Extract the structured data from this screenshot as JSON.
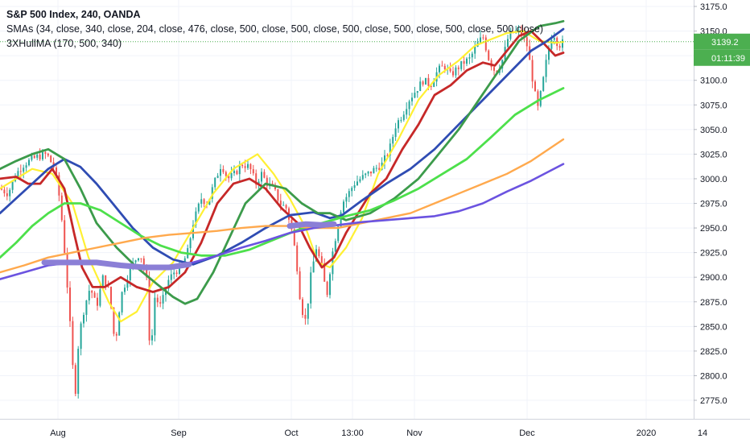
{
  "header": {
    "symbol_line": "S&P 500 Index, 240, OANDA",
    "sma_line": "SMAs (34, close, 340, close, 204, close, 476, close, 500, close, 500, close, 500, close, 500, close, 500, close, 500 close)",
    "hull_line": "3XHullMA (170, 500, 340)"
  },
  "price_badge": {
    "price": "3139.2",
    "countdown": "01:11:39",
    "color": "#4caf50"
  },
  "chart_data": {
    "type": "candlestick",
    "title": "S&P 500 Index, 240, OANDA",
    "ylim": [
      2760,
      3180
    ],
    "y_ticks": [
      2775,
      2800,
      2825,
      2850,
      2875,
      2900,
      2925,
      2950,
      2975,
      3000,
      3025,
      3050,
      3075,
      3100,
      3125,
      3150,
      3175
    ],
    "y_tick_labels": [
      "2775.0",
      "2800.0",
      "2825.0",
      "2850.0",
      "2875.0",
      "2900.0",
      "2925.0",
      "2950.0",
      "2975.0",
      "3000.0",
      "3025.0",
      "3050.0",
      "3075.0",
      "3100.0",
      "3125.0",
      "3150.0",
      "3175.0"
    ],
    "x_ticks": [
      {
        "label": "Aug",
        "t": 72
      },
      {
        "label": "Sep",
        "t": 222
      },
      {
        "label": "Oct",
        "t": 362
      },
      {
        "label": "13:00",
        "t": 438
      },
      {
        "label": "Nov",
        "t": 515
      },
      {
        "label": "Dec",
        "t": 655
      },
      {
        "label": "2020",
        "t": 803
      },
      {
        "label": "14",
        "t": 873
      }
    ],
    "x_range": [
      0,
      862
    ],
    "last_price": 3139.2,
    "price_path": [
      [
        0,
        2990
      ],
      [
        10,
        2985
      ],
      [
        20,
        3005
      ],
      [
        30,
        3015
      ],
      [
        45,
        3022
      ],
      [
        58,
        3025
      ],
      [
        68,
        3010
      ],
      [
        75,
        2975
      ],
      [
        82,
        2910
      ],
      [
        88,
        2840
      ],
      [
        93,
        2775
      ],
      [
        98,
        2840
      ],
      [
        105,
        2870
      ],
      [
        112,
        2890
      ],
      [
        120,
        2870
      ],
      [
        128,
        2900
      ],
      [
        136,
        2885
      ],
      [
        143,
        2830
      ],
      [
        150,
        2880
      ],
      [
        158,
        2900
      ],
      [
        166,
        2915
      ],
      [
        174,
        2925
      ],
      [
        182,
        2900
      ],
      [
        187,
        2815
      ],
      [
        192,
        2880
      ],
      [
        200,
        2870
      ],
      [
        208,
        2895
      ],
      [
        216,
        2905
      ],
      [
        225,
        2910
      ],
      [
        233,
        2925
      ],
      [
        240,
        2955
      ],
      [
        250,
        2980
      ],
      [
        258,
        2975
      ],
      [
        266,
        2995
      ],
      [
        275,
        3015
      ],
      [
        283,
        3000
      ],
      [
        292,
        3005
      ],
      [
        300,
        3015
      ],
      [
        310,
        3012
      ],
      [
        318,
        2995
      ],
      [
        325,
        3005
      ],
      [
        332,
        2995
      ],
      [
        340,
        2990
      ],
      [
        348,
        2975
      ],
      [
        356,
        2970
      ],
      [
        362,
        2950
      ],
      [
        368,
        2920
      ],
      [
        374,
        2870
      ],
      [
        380,
        2855
      ],
      [
        386,
        2900
      ],
      [
        393,
        2930
      ],
      [
        400,
        2910
      ],
      [
        406,
        2880
      ],
      [
        412,
        2920
      ],
      [
        418,
        2945
      ],
      [
        425,
        2975
      ],
      [
        433,
        2985
      ],
      [
        440,
        2995
      ],
      [
        448,
        3000
      ],
      [
        457,
        3005
      ],
      [
        466,
        3010
      ],
      [
        475,
        3015
      ],
      [
        484,
        3030
      ],
      [
        492,
        3055
      ],
      [
        500,
        3065
      ],
      [
        508,
        3080
      ],
      [
        517,
        3090
      ],
      [
        526,
        3100
      ],
      [
        535,
        3095
      ],
      [
        544,
        3110
      ],
      [
        552,
        3115
      ],
      [
        560,
        3105
      ],
      [
        568,
        3112
      ],
      [
        576,
        3118
      ],
      [
        584,
        3122
      ],
      [
        592,
        3135
      ],
      [
        600,
        3145
      ],
      [
        608,
        3120
      ],
      [
        616,
        3108
      ],
      [
        624,
        3120
      ],
      [
        632,
        3145
      ],
      [
        640,
        3150
      ],
      [
        648,
        3148
      ],
      [
        655,
        3135
      ],
      [
        662,
        3100
      ],
      [
        668,
        3070
      ],
      [
        674,
        3095
      ],
      [
        680,
        3125
      ],
      [
        687,
        3150
      ],
      [
        694,
        3135
      ],
      [
        700,
        3139
      ]
    ],
    "series": [
      {
        "color": "#fff033",
        "width": 2.2,
        "points": [
          [
            0,
            2990
          ],
          [
            40,
            3010
          ],
          [
            65,
            3005
          ],
          [
            90,
            2975
          ],
          [
            110,
            2920
          ],
          [
            135,
            2875
          ],
          [
            150,
            2855
          ],
          [
            170,
            2865
          ],
          [
            190,
            2895
          ],
          [
            215,
            2915
          ],
          [
            240,
            2950
          ],
          [
            265,
            2985
          ],
          [
            290,
            3010
          ],
          [
            320,
            3025
          ],
          [
            340,
            3005
          ],
          [
            360,
            2980
          ],
          [
            380,
            2950
          ],
          [
            395,
            2915
          ],
          [
            410,
            2910
          ],
          [
            430,
            2930
          ],
          [
            450,
            2960
          ],
          [
            470,
            3005
          ],
          [
            495,
            3040
          ],
          [
            520,
            3080
          ],
          [
            545,
            3105
          ],
          [
            570,
            3120
          ],
          [
            590,
            3135
          ],
          [
            605,
            3140
          ],
          [
            630,
            3148
          ],
          [
            650,
            3150
          ],
          [
            670,
            3140
          ],
          [
            690,
            3138
          ],
          [
            700,
            3139
          ]
        ]
      },
      {
        "color": "#c62828",
        "width": 2.8,
        "points": [
          [
            0,
            3000
          ],
          [
            20,
            3002
          ],
          [
            35,
            2995
          ],
          [
            50,
            2995
          ],
          [
            65,
            3010
          ],
          [
            80,
            2990
          ],
          [
            92,
            2945
          ],
          [
            102,
            2910
          ],
          [
            115,
            2890
          ],
          [
            130,
            2890
          ],
          [
            150,
            2900
          ],
          [
            170,
            2890
          ],
          [
            190,
            2885
          ],
          [
            210,
            2890
          ],
          [
            230,
            2905
          ],
          [
            250,
            2935
          ],
          [
            270,
            2975
          ],
          [
            290,
            2995
          ],
          [
            310,
            3000
          ],
          [
            330,
            2990
          ],
          [
            350,
            2970
          ],
          [
            370,
            2955
          ],
          [
            385,
            2930
          ],
          [
            400,
            2910
          ],
          [
            415,
            2920
          ],
          [
            430,
            2945
          ],
          [
            445,
            2965
          ],
          [
            460,
            2985
          ],
          [
            480,
            3000
          ],
          [
            500,
            3030
          ],
          [
            520,
            3055
          ],
          [
            540,
            3085
          ],
          [
            560,
            3095
          ],
          [
            580,
            3110
          ],
          [
            600,
            3118
          ],
          [
            615,
            3115
          ],
          [
            630,
            3130
          ],
          [
            645,
            3145
          ],
          [
            660,
            3150
          ],
          [
            675,
            3138
          ],
          [
            690,
            3125
          ],
          [
            700,
            3128
          ]
        ]
      },
      {
        "color": "#2f4cb3",
        "width": 2.8,
        "points": [
          [
            0,
            2965
          ],
          [
            20,
            2980
          ],
          [
            40,
            2995
          ],
          [
            60,
            3010
          ],
          [
            80,
            3020
          ],
          [
            100,
            3012
          ],
          [
            120,
            2995
          ],
          [
            140,
            2975
          ],
          [
            165,
            2950
          ],
          [
            190,
            2930
          ],
          [
            215,
            2918
          ],
          [
            240,
            2913
          ],
          [
            270,
            2922
          ],
          [
            300,
            2935
          ],
          [
            330,
            2950
          ],
          [
            360,
            2963
          ],
          [
            390,
            2966
          ],
          [
            410,
            2960
          ],
          [
            425,
            2963
          ],
          [
            450,
            2978
          ],
          [
            480,
            2995
          ],
          [
            510,
            3010
          ],
          [
            540,
            3030
          ],
          [
            570,
            3055
          ],
          [
            600,
            3080
          ],
          [
            630,
            3105
          ],
          [
            660,
            3130
          ],
          [
            680,
            3140
          ],
          [
            700,
            3152
          ]
        ]
      },
      {
        "color": "#3c9b4b",
        "width": 2.8,
        "points": [
          [
            0,
            3010
          ],
          [
            20,
            3018
          ],
          [
            40,
            3025
          ],
          [
            60,
            3030
          ],
          [
            80,
            3020
          ],
          [
            100,
            2990
          ],
          [
            120,
            2955
          ],
          [
            145,
            2930
          ],
          [
            170,
            2910
          ],
          [
            195,
            2893
          ],
          [
            215,
            2880
          ],
          [
            230,
            2873
          ],
          [
            245,
            2878
          ],
          [
            265,
            2905
          ],
          [
            285,
            2940
          ],
          [
            305,
            2975
          ],
          [
            330,
            2995
          ],
          [
            355,
            2990
          ],
          [
            375,
            2975
          ],
          [
            395,
            2965
          ],
          [
            410,
            2965
          ],
          [
            430,
            2958
          ],
          [
            460,
            2965
          ],
          [
            490,
            2980
          ],
          [
            520,
            3000
          ],
          [
            545,
            3025
          ],
          [
            570,
            3050
          ],
          [
            595,
            3080
          ],
          [
            620,
            3110
          ],
          [
            645,
            3140
          ],
          [
            670,
            3155
          ],
          [
            690,
            3158
          ],
          [
            700,
            3160
          ]
        ]
      },
      {
        "color": "#4de04b",
        "width": 2.8,
        "points": [
          [
            0,
            2920
          ],
          [
            20,
            2935
          ],
          [
            40,
            2952
          ],
          [
            60,
            2965
          ],
          [
            80,
            2975
          ],
          [
            100,
            2975
          ],
          [
            125,
            2968
          ],
          [
            150,
            2955
          ],
          [
            175,
            2942
          ],
          [
            200,
            2932
          ],
          [
            225,
            2925
          ],
          [
            250,
            2922
          ],
          [
            280,
            2922
          ],
          [
            310,
            2928
          ],
          [
            340,
            2938
          ],
          [
            370,
            2948
          ],
          [
            400,
            2955
          ],
          [
            430,
            2962
          ],
          [
            460,
            2968
          ],
          [
            490,
            2978
          ],
          [
            520,
            2990
          ],
          [
            550,
            3005
          ],
          [
            580,
            3020
          ],
          [
            610,
            3042
          ],
          [
            640,
            3065
          ],
          [
            670,
            3080
          ],
          [
            700,
            3092
          ]
        ]
      },
      {
        "color": "#ffa94d",
        "width": 2.4,
        "points": [
          [
            0,
            2905
          ],
          [
            30,
            2912
          ],
          [
            60,
            2920
          ],
          [
            90,
            2925
          ],
          [
            120,
            2930
          ],
          [
            150,
            2935
          ],
          [
            180,
            2940
          ],
          [
            210,
            2943
          ],
          [
            240,
            2945
          ],
          [
            270,
            2947
          ],
          [
            300,
            2950
          ],
          [
            330,
            2952
          ],
          [
            360,
            2952
          ],
          [
            390,
            2950
          ],
          [
            420,
            2950
          ],
          [
            450,
            2955
          ],
          [
            480,
            2960
          ],
          [
            510,
            2965
          ],
          [
            540,
            2975
          ],
          [
            570,
            2985
          ],
          [
            600,
            2995
          ],
          [
            630,
            3005
          ],
          [
            660,
            3018
          ],
          [
            700,
            3040
          ]
        ]
      },
      {
        "color": "#6b53e0",
        "width": 2.6,
        "points": [
          [
            0,
            2898
          ],
          [
            30,
            2905
          ],
          [
            60,
            2912
          ],
          [
            90,
            2915
          ],
          [
            120,
            2915
          ],
          [
            150,
            2912
          ],
          [
            180,
            2910
          ],
          [
            210,
            2910
          ],
          [
            240,
            2915
          ],
          [
            270,
            2922
          ],
          [
            300,
            2930
          ],
          [
            330,
            2937
          ],
          [
            360,
            2945
          ],
          [
            390,
            2950
          ],
          [
            420,
            2953
          ],
          [
            450,
            2956
          ],
          [
            480,
            2958
          ],
          [
            510,
            2960
          ],
          [
            540,
            2962
          ],
          [
            570,
            2967
          ],
          [
            600,
            2975
          ],
          [
            630,
            2987
          ],
          [
            660,
            2998
          ],
          [
            700,
            3015
          ]
        ]
      },
      {
        "color": "#8b7fd6",
        "width": 7,
        "points": [
          [
            55,
            2915
          ],
          [
            90,
            2915
          ],
          [
            120,
            2915
          ],
          [
            150,
            2912
          ],
          [
            180,
            2910
          ],
          [
            210,
            2910
          ],
          [
            235,
            2913
          ]
        ]
      },
      {
        "color": "#8b7fd6",
        "width": 7,
        "points": [
          [
            360,
            2952
          ],
          [
            380,
            2954
          ],
          [
            400,
            2953
          ],
          [
            415,
            2954
          ]
        ]
      }
    ]
  }
}
